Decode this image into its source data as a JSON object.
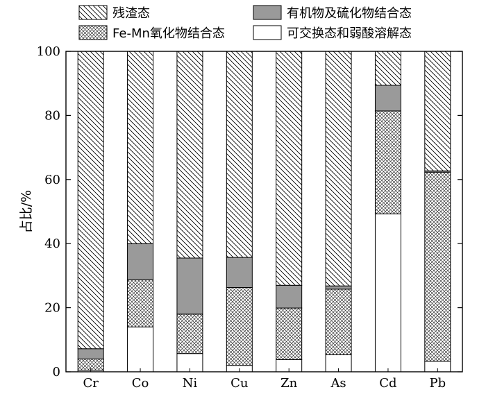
{
  "chart_data": {
    "type": "bar",
    "stacked": true,
    "categories": [
      "Cr",
      "Co",
      "Ni",
      "Cu",
      "Zn",
      "As",
      "Cd",
      "Pb"
    ],
    "series": [
      {
        "name": "可交换态和弱酸溶解态",
        "values": [
          0.5,
          14.0,
          5.7,
          2.0,
          3.8,
          5.3,
          49.3,
          3.3
        ],
        "pattern": "blank"
      },
      {
        "name": "Fe-Mn氧化物结合态",
        "values": [
          3.5,
          14.7,
          12.3,
          24.3,
          16.1,
          20.5,
          32.1,
          59.0
        ],
        "pattern": "crosshatch"
      },
      {
        "name": "有机物及硫化物结合态",
        "values": [
          3.2,
          11.3,
          17.5,
          9.4,
          7.1,
          1.0,
          8.0,
          0.4
        ],
        "pattern": "gray"
      },
      {
        "name": "残渣态",
        "values": [
          92.8,
          60.0,
          64.5,
          64.3,
          73.0,
          73.2,
          10.6,
          37.3
        ],
        "pattern": "diagonal"
      }
    ],
    "ylabel": "占比/%",
    "xlabel": "",
    "ylim": [
      0,
      100
    ],
    "yticks": [
      0,
      20,
      40,
      60,
      80,
      100
    ],
    "grid": false,
    "legend_position": "top"
  }
}
